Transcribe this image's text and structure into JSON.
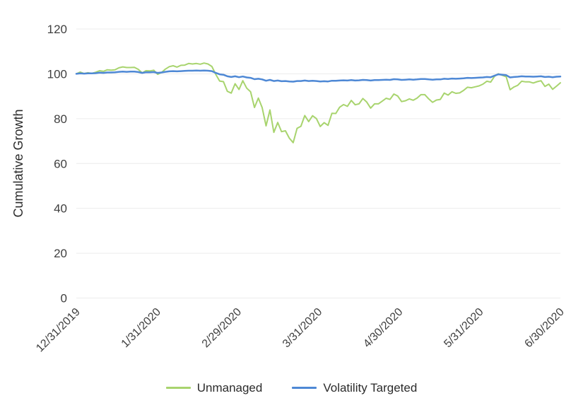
{
  "chart_data": {
    "type": "line",
    "title": "",
    "xlabel": "",
    "ylabel": "Cumulative Growth",
    "ylim": [
      0,
      120
    ],
    "yticks": [
      0,
      20,
      40,
      60,
      80,
      100,
      120
    ],
    "xtick_labels": [
      "12/31/2019",
      "1/31/2020",
      "2/29/2020",
      "3/31/2020",
      "4/30/2020",
      "5/31/2020",
      "6/30/2020"
    ],
    "grid": "horizontal-only",
    "gridline_color": "#ececec",
    "text_color": "#3f3f3f",
    "background": "#ffffff",
    "legend_position": "bottom",
    "dates": [
      "12/31/2019",
      "1/2/2020",
      "1/3/2020",
      "1/6/2020",
      "1/7/2020",
      "1/8/2020",
      "1/9/2020",
      "1/10/2020",
      "1/13/2020",
      "1/14/2020",
      "1/15/2020",
      "1/16/2020",
      "1/17/2020",
      "1/21/2020",
      "1/22/2020",
      "1/23/2020",
      "1/24/2020",
      "1/27/2020",
      "1/28/2020",
      "1/29/2020",
      "1/30/2020",
      "1/31/2020",
      "2/3/2020",
      "2/4/2020",
      "2/5/2020",
      "2/6/2020",
      "2/7/2020",
      "2/10/2020",
      "2/11/2020",
      "2/12/2020",
      "2/13/2020",
      "2/14/2020",
      "2/18/2020",
      "2/19/2020",
      "2/20/2020",
      "2/21/2020",
      "2/24/2020",
      "2/25/2020",
      "2/26/2020",
      "2/27/2020",
      "2/28/2020",
      "3/2/2020",
      "3/3/2020",
      "3/4/2020",
      "3/5/2020",
      "3/6/2020",
      "3/9/2020",
      "3/10/2020",
      "3/11/2020",
      "3/12/2020",
      "3/13/2020",
      "3/16/2020",
      "3/17/2020",
      "3/18/2020",
      "3/19/2020",
      "3/20/2020",
      "3/23/2020",
      "3/24/2020",
      "3/25/2020",
      "3/26/2020",
      "3/27/2020",
      "3/30/2020",
      "3/31/2020",
      "4/1/2020",
      "4/2/2020",
      "4/3/2020",
      "4/6/2020",
      "4/7/2020",
      "4/8/2020",
      "4/9/2020",
      "4/13/2020",
      "4/14/2020",
      "4/15/2020",
      "4/16/2020",
      "4/17/2020",
      "4/20/2020",
      "4/21/2020",
      "4/22/2020",
      "4/23/2020",
      "4/24/2020",
      "4/27/2020",
      "4/28/2020",
      "4/29/2020",
      "4/30/2020",
      "5/1/2020",
      "5/4/2020",
      "5/5/2020",
      "5/6/2020",
      "5/7/2020",
      "5/8/2020",
      "5/11/2020",
      "5/12/2020",
      "5/13/2020",
      "5/14/2020",
      "5/15/2020",
      "5/18/2020",
      "5/19/2020",
      "5/20/2020",
      "5/21/2020",
      "5/22/2020",
      "5/26/2020",
      "5/27/2020",
      "5/28/2020",
      "5/29/2020",
      "6/1/2020",
      "6/2/2020",
      "6/3/2020",
      "6/4/2020",
      "6/5/2020",
      "6/8/2020",
      "6/9/2020",
      "6/10/2020",
      "6/11/2020",
      "6/12/2020",
      "6/15/2020",
      "6/16/2020",
      "6/17/2020",
      "6/18/2020",
      "6/19/2020",
      "6/22/2020",
      "6/23/2020",
      "6/24/2020",
      "6/25/2020",
      "6/26/2020",
      "6/29/2020",
      "6/30/2020"
    ],
    "series": [
      {
        "name": "Unmanaged",
        "color": "#a8d46e",
        "values": [
          100.0,
          100.8,
          100.1,
          100.5,
          100.2,
          100.7,
          101.4,
          101.1,
          101.8,
          101.6,
          101.8,
          102.7,
          103.1,
          102.8,
          102.8,
          102.9,
          102.0,
          100.4,
          101.4,
          101.3,
          101.6,
          99.8,
          100.6,
          102.1,
          103.2,
          103.6,
          103.0,
          103.8,
          103.9,
          104.6,
          104.4,
          104.6,
          104.3,
          104.8,
          104.4,
          103.3,
          99.8,
          96.8,
          96.5,
          92.2,
          91.4,
          95.6,
          93.0,
          96.9,
          93.6,
          92.0,
          85.0,
          89.2,
          84.9,
          76.8,
          83.9,
          73.9,
          78.3,
          74.2,
          74.6,
          71.3,
          69.3,
          75.7,
          76.6,
          81.4,
          78.7,
          81.3,
          80.0,
          76.5,
          78.2,
          77.0,
          82.4,
          82.3,
          85.1,
          86.3,
          85.5,
          88.1,
          86.2,
          86.6,
          89.0,
          87.4,
          84.7,
          86.6,
          86.6,
          87.8,
          89.1,
          88.6,
          91.0,
          90.1,
          87.6,
          88.0,
          88.8,
          88.2,
          89.2,
          90.7,
          90.7,
          88.8,
          87.3,
          88.3,
          88.6,
          91.4,
          90.5,
          92.0,
          91.3,
          91.5,
          92.6,
          94.0,
          93.8,
          94.2,
          94.6,
          95.4,
          96.7,
          96.3,
          98.9,
          100.0,
          99.3,
          98.7,
          92.9,
          94.1,
          94.9,
          96.7,
          96.4,
          96.4,
          95.9,
          96.5,
          96.9,
          94.4,
          95.4,
          93.1,
          94.5,
          96.0
        ]
      },
      {
        "name": "Volatility Targeted",
        "color": "#4e88d5",
        "values": [
          100.0,
          100.2,
          100.1,
          100.2,
          100.2,
          100.3,
          100.5,
          100.4,
          100.6,
          100.6,
          100.7,
          100.9,
          101.0,
          100.9,
          101.0,
          101.0,
          100.8,
          100.4,
          100.7,
          100.7,
          100.8,
          100.4,
          100.6,
          100.9,
          101.1,
          101.2,
          101.1,
          101.2,
          101.3,
          101.4,
          101.4,
          101.5,
          101.4,
          101.5,
          101.4,
          101.2,
          100.4,
          99.8,
          99.6,
          98.9,
          98.6,
          98.9,
          98.5,
          98.8,
          98.4,
          98.2,
          97.6,
          97.8,
          97.5,
          96.9,
          97.3,
          96.8,
          97.0,
          96.7,
          96.8,
          96.6,
          96.5,
          96.8,
          96.8,
          97.0,
          96.8,
          96.9,
          96.8,
          96.6,
          96.7,
          96.6,
          96.9,
          96.9,
          97.0,
          97.1,
          97.0,
          97.2,
          97.0,
          97.1,
          97.3,
          97.2,
          97.0,
          97.2,
          97.2,
          97.3,
          97.4,
          97.3,
          97.6,
          97.5,
          97.3,
          97.4,
          97.5,
          97.4,
          97.5,
          97.7,
          97.7,
          97.5,
          97.4,
          97.5,
          97.5,
          97.8,
          97.7,
          97.9,
          97.8,
          97.9,
          98.0,
          98.2,
          98.1,
          98.2,
          98.3,
          98.4,
          98.6,
          98.5,
          99.2,
          99.8,
          99.6,
          99.4,
          98.4,
          98.6,
          98.7,
          98.9,
          98.8,
          98.8,
          98.7,
          98.8,
          98.9,
          98.6,
          98.7,
          98.5,
          98.7,
          98.8
        ]
      }
    ]
  }
}
